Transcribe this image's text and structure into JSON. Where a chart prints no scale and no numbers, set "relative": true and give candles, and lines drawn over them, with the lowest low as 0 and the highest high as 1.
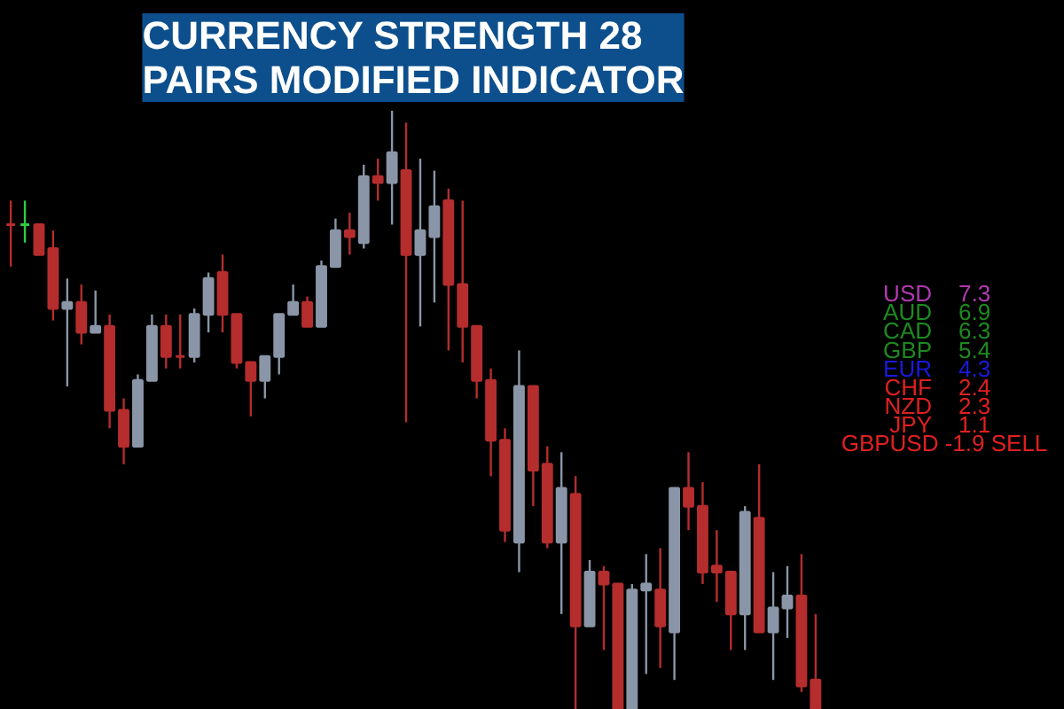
{
  "chart_data": [
    {
      "type": "candlestick",
      "title": "CURRENCY STRENGTH 28 PAIRS MODIFIED INDICATOR",
      "relative": true,
      "categories": [
        null,
        null,
        null,
        null,
        null,
        null,
        null,
        null,
        null,
        null,
        null,
        null,
        null,
        null,
        null,
        null,
        null,
        null,
        null,
        null,
        null,
        null,
        null,
        null,
        null,
        null,
        null,
        null,
        null,
        null,
        null,
        null,
        null,
        null,
        null,
        null,
        null,
        null,
        null,
        null,
        null,
        null,
        null,
        null,
        null,
        null,
        null,
        null,
        null,
        null,
        null,
        null,
        null,
        null,
        null,
        null,
        null,
        null
      ],
      "ohlc": [
        [
          0.81,
          0.85,
          0.74,
          0.81
        ],
        [
          0.81,
          0.85,
          0.78,
          0.81
        ],
        [
          0.81,
          0.81,
          0.76,
          0.76
        ],
        [
          0.77,
          0.8,
          0.65,
          0.67
        ],
        [
          0.67,
          0.72,
          0.54,
          0.68
        ],
        [
          0.68,
          0.71,
          0.61,
          0.63
        ],
        [
          0.63,
          0.7,
          0.63,
          0.64
        ],
        [
          0.64,
          0.66,
          0.47,
          0.5
        ],
        [
          0.5,
          0.52,
          0.41,
          0.44
        ],
        [
          0.44,
          0.56,
          0.44,
          0.55
        ],
        [
          0.55,
          0.66,
          0.55,
          0.64
        ],
        [
          0.64,
          0.66,
          0.57,
          0.59
        ],
        [
          0.59,
          0.66,
          0.57,
          0.59
        ],
        [
          0.59,
          0.67,
          0.58,
          0.66
        ],
        [
          0.66,
          0.73,
          0.63,
          0.72
        ],
        [
          0.73,
          0.76,
          0.63,
          0.66
        ],
        [
          0.66,
          0.66,
          0.57,
          0.58
        ],
        [
          0.58,
          0.58,
          0.49,
          0.55
        ],
        [
          0.55,
          0.59,
          0.52,
          0.59
        ],
        [
          0.59,
          0.66,
          0.56,
          0.66
        ],
        [
          0.66,
          0.71,
          0.66,
          0.68
        ],
        [
          0.68,
          0.69,
          0.64,
          0.64
        ],
        [
          0.64,
          0.75,
          0.64,
          0.74
        ],
        [
          0.74,
          0.82,
          0.74,
          0.8
        ],
        [
          0.8,
          0.83,
          0.76,
          0.79
        ],
        [
          0.78,
          0.91,
          0.77,
          0.89
        ],
        [
          0.89,
          0.92,
          0.85,
          0.88
        ],
        [
          0.88,
          1.0,
          0.81,
          0.93
        ],
        [
          0.9,
          0.98,
          0.48,
          0.76
        ],
        [
          0.76,
          0.92,
          0.64,
          0.8
        ],
        [
          0.79,
          0.9,
          0.68,
          0.84
        ],
        [
          0.85,
          0.87,
          0.6,
          0.71
        ],
        [
          0.71,
          0.85,
          0.58,
          0.64
        ],
        [
          0.64,
          0.64,
          0.52,
          0.55
        ],
        [
          0.55,
          0.57,
          0.39,
          0.45
        ],
        [
          0.45,
          0.47,
          0.28,
          0.3
        ],
        [
          0.28,
          0.6,
          0.23,
          0.54
        ],
        [
          0.54,
          0.54,
          0.34,
          0.4
        ],
        [
          0.41,
          0.44,
          0.27,
          0.28
        ],
        [
          0.28,
          0.43,
          0.16,
          0.37
        ],
        [
          0.36,
          0.39,
          0,
          0.14
        ],
        [
          0.14,
          0.25,
          0.14,
          0.23
        ],
        [
          0.23,
          0.24,
          0.1,
          0.21
        ],
        [
          0.21,
          0.21,
          0,
          0
        ],
        [
          0,
          0.21,
          0,
          0.2
        ],
        [
          0.2,
          0.26,
          0.06,
          0.21
        ],
        [
          0.2,
          0.27,
          0.07,
          0.14
        ],
        [
          0.13,
          0.37,
          0.05,
          0.37
        ],
        [
          0.37,
          0.43,
          0.3,
          0.34
        ],
        [
          0.34,
          0.38,
          0.21,
          0.23
        ],
        [
          0.24,
          0.3,
          0.18,
          0.23
        ],
        [
          0.23,
          0.23,
          0.1,
          0.16
        ],
        [
          0.16,
          0.34,
          0.1,
          0.33
        ],
        [
          0.32,
          0.41,
          0.13,
          0.13
        ],
        [
          0.13,
          0.23,
          0.05,
          0.17
        ],
        [
          0.17,
          0.24,
          0.12,
          0.19
        ],
        [
          0.19,
          0.26,
          0.03,
          0.04
        ],
        [
          0.05,
          0.16,
          0,
          0
        ]
      ],
      "colors": [
        "#b52d2d",
        "#2ecc40",
        "#b52d2d",
        "#b52d2d",
        "#8a96a8",
        "#b52d2d",
        "#8a96a8",
        "#b52d2d",
        "#b52d2d",
        "#8a96a8",
        "#8a96a8",
        "#b52d2d",
        "#b52d2d",
        "#8a96a8",
        "#8a96a8",
        "#b52d2d",
        "#b52d2d",
        "#b52d2d",
        "#8a96a8",
        "#8a96a8",
        "#8a96a8",
        "#b52d2d",
        "#8a96a8",
        "#8a96a8",
        "#b52d2d",
        "#8a96a8",
        "#b52d2d",
        "#8a96a8",
        "#b52d2d",
        "#8a96a8",
        "#8a96a8",
        "#b52d2d",
        "#b52d2d",
        "#b52d2d",
        "#b52d2d",
        "#b52d2d",
        "#8a96a8",
        "#b52d2d",
        "#b52d2d",
        "#8a96a8",
        "#b52d2d",
        "#8a96a8",
        "#b52d2d",
        "#b52d2d",
        "#8a96a8",
        "#8a96a8",
        "#b52d2d",
        "#8a96a8",
        "#b52d2d",
        "#b52d2d",
        "#b52d2d",
        "#b52d2d",
        "#8a96a8",
        "#b52d2d",
        "#8a96a8",
        "#8a96a8",
        "#b52d2d",
        "#b52d2d"
      ]
    },
    {
      "type": "other",
      "categories": [
        "USD",
        "AUD",
        "CAD",
        "GBP",
        "EUR",
        "CHF",
        "NZD",
        "JPY"
      ],
      "values": [
        7.3,
        6.9,
        6.3,
        5.4,
        4.3,
        2.4,
        2.3,
        1.1
      ],
      "data_labels": true,
      "colors": [
        "#b03ab0",
        "#1f8a1f",
        "#1f8a1f",
        "#1f8a1f",
        "#1a1adc",
        "#e02020",
        "#e02020",
        "#e02020"
      ],
      "annotations": [
        "GBPUSD -1.9 SELL"
      ]
    }
  ]
}
